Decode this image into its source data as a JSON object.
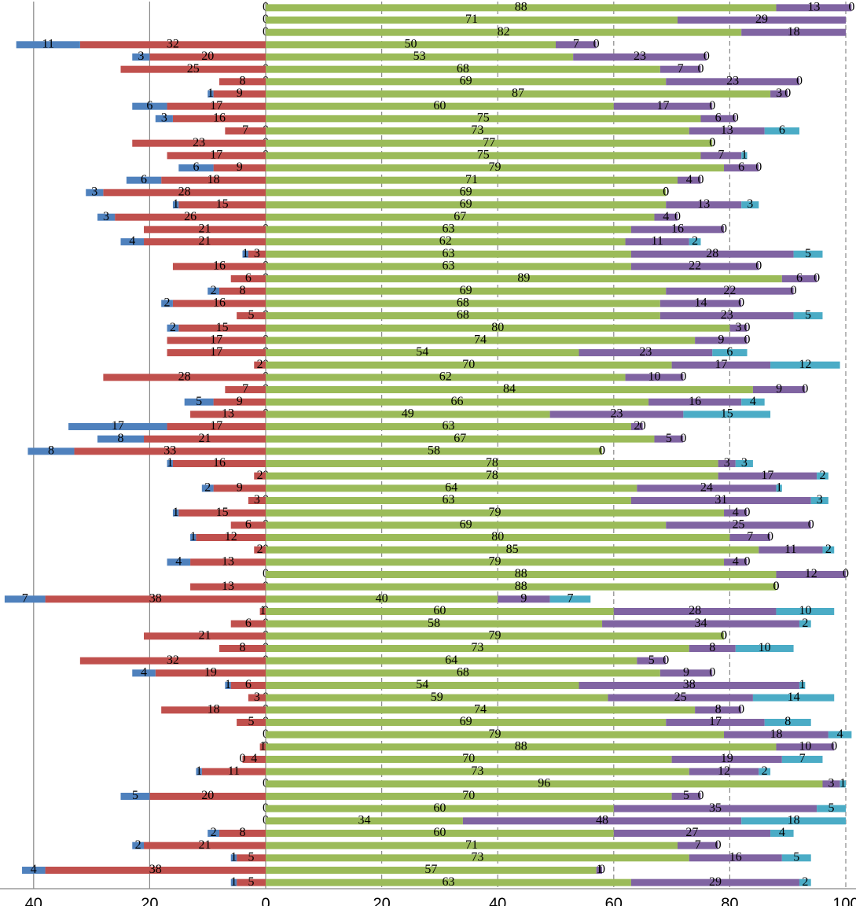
{
  "chart_data": {
    "type": "diverging-bar",
    "orientation": "horizontal",
    "xlim": [
      -45.8,
      100
    ],
    "xticks": [
      {
        "value": -40,
        "label": "40"
      },
      {
        "value": -20,
        "label": "20"
      },
      0,
      20,
      40,
      60,
      80,
      100
    ],
    "grid": true,
    "series": [
      {
        "side": "left",
        "color": "#c0504d",
        "values": [
          0,
          0,
          0,
          null,
          null,
          0,
          0,
          null,
          null,
          null,
          0,
          0,
          0,
          null,
          null,
          null,
          null,
          null,
          0,
          null,
          null,
          0,
          0,
          null,
          null,
          0,
          null,
          0,
          0,
          0,
          0,
          0,
          null,
          0,
          null,
          null,
          null,
          null,
          0,
          null,
          0,
          null,
          0,
          null,
          0,
          null,
          0,
          0,
          null,
          0,
          0,
          0,
          0,
          0,
          null,
          null,
          0,
          0,
          0,
          0,
          0,
          null,
          null,
          0,
          null,
          0,
          0,
          null,
          null,
          null,
          null,
          null
        ]
      },
      {
        "side": "left",
        "color": "#c0504d",
        "values": [
          null,
          null,
          null,
          32,
          20,
          25,
          8,
          9,
          17,
          16,
          7,
          23,
          17,
          9,
          18,
          28,
          15,
          26,
          21,
          21,
          3,
          16,
          6,
          8,
          16,
          5,
          15,
          17,
          17,
          2,
          28,
          7,
          9,
          13,
          17,
          21,
          33,
          16,
          2,
          9,
          3,
          15,
          6,
          12,
          2,
          13,
          null,
          13,
          38,
          1,
          6,
          21,
          8,
          32,
          19,
          6,
          3,
          18,
          5,
          null,
          1,
          4,
          11,
          null,
          20,
          null,
          null,
          8,
          21,
          5,
          38,
          5
        ]
      },
      {
        "side": "left",
        "color": "#4f81bd",
        "values": [
          null,
          null,
          null,
          11,
          3,
          null,
          null,
          1,
          6,
          3,
          null,
          null,
          null,
          6,
          6,
          3,
          1,
          3,
          null,
          4,
          1,
          null,
          null,
          2,
          2,
          null,
          2,
          null,
          null,
          null,
          null,
          null,
          5,
          null,
          17,
          8,
          8,
          1,
          null,
          2,
          null,
          1,
          null,
          1,
          null,
          4,
          null,
          null,
          7,
          null,
          null,
          null,
          null,
          null,
          4,
          1,
          null,
          null,
          null,
          null,
          null,
          0,
          1,
          null,
          5,
          null,
          null,
          2,
          2,
          1,
          4,
          1
        ]
      },
      {
        "side": "right",
        "color": "#9bbb59",
        "values": [
          88,
          71,
          82,
          50,
          53,
          68,
          69,
          87,
          60,
          75,
          73,
          77,
          75,
          79,
          71,
          69,
          69,
          67,
          63,
          62,
          63,
          63,
          89,
          69,
          68,
          68,
          80,
          74,
          54,
          70,
          62,
          84,
          66,
          49,
          63,
          67,
          58,
          78,
          78,
          64,
          63,
          79,
          69,
          80,
          85,
          79,
          88,
          88,
          40,
          60,
          58,
          79,
          73,
          64,
          68,
          54,
          59,
          74,
          69,
          79,
          88,
          70,
          73,
          96,
          70,
          60,
          34,
          60,
          71,
          73,
          57,
          63
        ]
      },
      {
        "side": "right",
        "color": "#8064a2",
        "values": [
          13,
          29,
          18,
          7,
          23,
          7,
          23,
          3,
          17,
          6,
          13,
          0,
          7,
          6,
          4,
          0,
          13,
          4,
          16,
          11,
          28,
          22,
          6,
          22,
          14,
          23,
          3,
          9,
          23,
          17,
          10,
          9,
          16,
          23,
          2,
          5,
          0,
          3,
          17,
          24,
          31,
          4,
          25,
          7,
          11,
          4,
          12,
          0,
          9,
          28,
          34,
          0,
          8,
          5,
          9,
          38,
          25,
          8,
          17,
          18,
          10,
          19,
          12,
          3,
          5,
          35,
          48,
          27,
          7,
          16,
          1,
          29
        ]
      },
      {
        "side": "right",
        "color": "#4bacc6",
        "values": [
          0,
          null,
          null,
          0,
          0,
          0,
          0,
          0,
          0,
          0,
          6,
          0,
          1,
          0,
          0,
          0,
          3,
          0,
          0,
          2,
          5,
          0,
          0,
          0,
          0,
          5,
          0,
          0,
          6,
          12,
          0,
          0,
          4,
          15,
          0,
          0,
          0,
          3,
          2,
          1,
          3,
          0,
          0,
          0,
          2,
          0,
          0,
          0,
          7,
          10,
          2,
          0,
          10,
          0,
          0,
          1,
          14,
          0,
          8,
          4,
          0,
          7,
          2,
          1,
          0,
          5,
          18,
          4,
          0,
          5,
          0,
          2
        ]
      }
    ]
  }
}
